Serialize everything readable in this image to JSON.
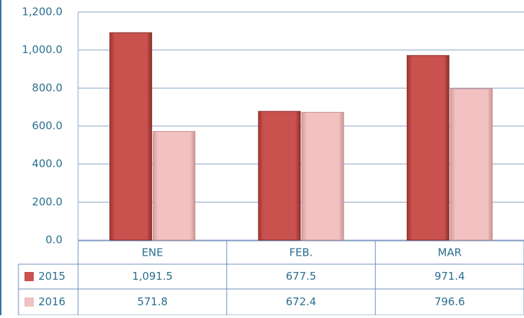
{
  "chart_data": {
    "type": "bar",
    "categories": [
      "ENE",
      "FEB.",
      "MAR"
    ],
    "series": [
      {
        "name": "2015",
        "color": "#c9514e",
        "values": [
          1091.5,
          677.5,
          971.4
        ],
        "value_labels": [
          "1,091.5",
          "677.5",
          "971.4"
        ]
      },
      {
        "name": "2016",
        "color": "#f2c1c1",
        "values": [
          571.8,
          672.4,
          796.6
        ],
        "value_labels": [
          "571.8",
          "672.4",
          "796.6"
        ]
      }
    ],
    "ylim": [
      0,
      1200
    ],
    "yticks": [
      {
        "value": 0,
        "label": "0.0"
      },
      {
        "value": 200,
        "label": "200.0"
      },
      {
        "value": 400,
        "label": "400.0"
      },
      {
        "value": 600,
        "label": "600.0"
      },
      {
        "value": 800,
        "label": "800.0"
      },
      {
        "value": 1000,
        "label": "1,000.0"
      },
      {
        "value": 1200,
        "label": "1,200.0"
      }
    ],
    "grid": true,
    "legend": "table"
  }
}
